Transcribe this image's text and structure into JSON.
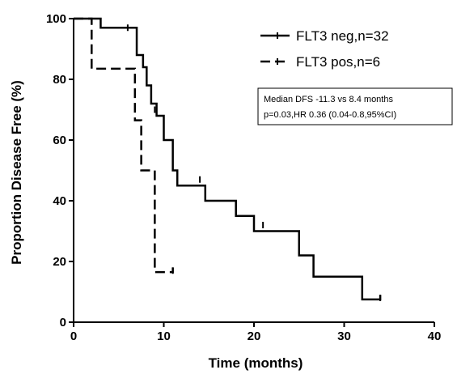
{
  "chart_data": {
    "type": "line",
    "xlabel": "Time (months)",
    "ylabel": "Proportion Disease Free (%)",
    "xlim": [
      0,
      40
    ],
    "ylim": [
      0,
      100
    ],
    "xticks": [
      "0",
      "10",
      "20",
      "30",
      "40"
    ],
    "yticks": [
      "0",
      "20",
      "40",
      "60",
      "80",
      "100"
    ],
    "grid": false,
    "legend_position": "top-right",
    "series": [
      {
        "name": "FLT3 neg,n=32",
        "style": "solid",
        "color": "#000000",
        "steps": [
          [
            0,
            100
          ],
          [
            3,
            97
          ],
          [
            7,
            88
          ],
          [
            7.7,
            84
          ],
          [
            8.1,
            78
          ],
          [
            8.6,
            72
          ],
          [
            9.2,
            68
          ],
          [
            10,
            60
          ],
          [
            11,
            50
          ],
          [
            11.5,
            45
          ],
          [
            14.6,
            40
          ],
          [
            18,
            35
          ],
          [
            20,
            30
          ],
          [
            25,
            22
          ],
          [
            26.6,
            15
          ],
          [
            32,
            7.5
          ],
          [
            34,
            9
          ]
        ],
        "censored": [
          [
            6,
            97
          ],
          [
            9,
            70
          ],
          [
            14,
            47
          ],
          [
            21,
            32
          ],
          [
            34,
            8
          ]
        ]
      },
      {
        "name": "FLT3 pos,n=6",
        "style": "dashed",
        "color": "#000000",
        "steps": [
          [
            0,
            100
          ],
          [
            2,
            83.5
          ],
          [
            6.8,
            66.5
          ],
          [
            7.5,
            50
          ],
          [
            9,
            16.5
          ],
          [
            11,
            18
          ]
        ],
        "censored": [
          [
            11,
            17
          ]
        ]
      }
    ],
    "annotation": {
      "lines": [
        "Median DFS -11.3 vs 8.4 months",
        "p=0.03,HR 0.36 (0.04-0.8,95%CI)"
      ]
    }
  }
}
